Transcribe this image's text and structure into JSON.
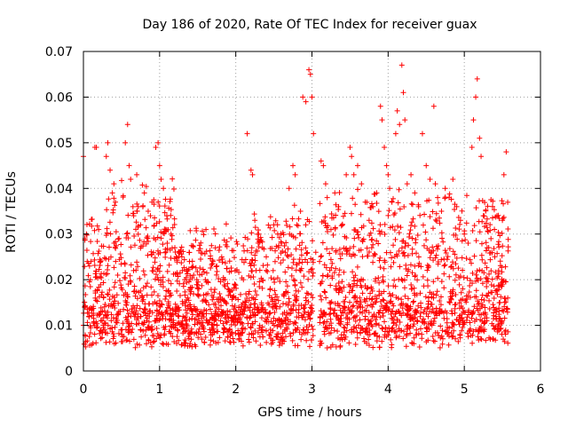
{
  "chart_data": {
    "type": "scatter",
    "title": "Day 186 of 2020, Rate Of TEC Index for receiver guax",
    "xlabel": "GPS time / hours",
    "ylabel": "ROTI / TECUs",
    "xlim": [
      0,
      6
    ],
    "ylim": [
      0,
      0.07
    ],
    "xticks": [
      0,
      1,
      2,
      3,
      4,
      5,
      6
    ],
    "xtick_labels": [
      "0",
      "1",
      "2",
      "3",
      "4",
      "5",
      "6"
    ],
    "yticks": [
      0,
      0.01,
      0.02,
      0.03,
      0.04,
      0.05,
      0.06,
      0.07
    ],
    "ytick_labels": [
      "0",
      "0.01",
      "0.02",
      "0.03",
      "0.04",
      "0.05",
      "0.06",
      "0.07"
    ],
    "grid": true,
    "marker": "+",
    "color": "#ff0000",
    "series": [
      {
        "name": "ROTI",
        "description": "Dense point cloud from 0 to ~5.58 h; baseline ~0.005-0.02 TECU/s with bursts near 0.3-1.2 h, 2.2-3.0 h, 3.5-5.5 h",
        "points": [
          [
            0.0,
            0.047
          ],
          [
            0.02,
            0.029
          ],
          [
            0.04,
            0.03
          ],
          [
            0.05,
            0.024
          ],
          [
            0.08,
            0.023
          ],
          [
            0.1,
            0.024
          ],
          [
            0.15,
            0.049
          ],
          [
            0.17,
            0.049
          ],
          [
            0.2,
            0.031
          ],
          [
            0.22,
            0.024
          ],
          [
            0.3,
            0.047
          ],
          [
            0.32,
            0.05
          ],
          [
            0.35,
            0.044
          ],
          [
            0.38,
            0.039
          ],
          [
            0.4,
            0.041
          ],
          [
            0.42,
            0.037
          ],
          [
            0.45,
            0.021
          ],
          [
            0.55,
            0.05
          ],
          [
            0.58,
            0.054
          ],
          [
            0.6,
            0.045
          ],
          [
            0.62,
            0.042
          ],
          [
            0.65,
            0.036
          ],
          [
            0.7,
            0.043
          ],
          [
            0.72,
            0.036
          ],
          [
            0.75,
            0.032
          ],
          [
            0.78,
            0.036
          ],
          [
            0.8,
            0.039
          ],
          [
            0.85,
            0.035
          ],
          [
            0.88,
            0.034
          ],
          [
            0.9,
            0.037
          ],
          [
            0.95,
            0.049
          ],
          [
            0.98,
            0.05
          ],
          [
            1.0,
            0.045
          ],
          [
            1.02,
            0.042
          ],
          [
            1.05,
            0.04
          ],
          [
            1.08,
            0.031
          ],
          [
            1.1,
            0.028
          ],
          [
            1.15,
            0.03
          ],
          [
            1.2,
            0.027
          ],
          [
            1.25,
            0.025
          ],
          [
            1.3,
            0.022
          ],
          [
            1.4,
            0.02
          ],
          [
            1.5,
            0.018
          ],
          [
            1.6,
            0.02
          ],
          [
            1.7,
            0.024
          ],
          [
            1.75,
            0.023
          ],
          [
            1.9,
            0.018
          ],
          [
            2.0,
            0.016
          ],
          [
            2.1,
            0.02
          ],
          [
            2.15,
            0.052
          ],
          [
            2.2,
            0.044
          ],
          [
            2.22,
            0.043
          ],
          [
            2.25,
            0.033
          ],
          [
            2.3,
            0.03
          ],
          [
            2.35,
            0.027
          ],
          [
            2.4,
            0.025
          ],
          [
            2.5,
            0.032
          ],
          [
            2.55,
            0.03
          ],
          [
            2.6,
            0.028
          ],
          [
            2.65,
            0.026
          ],
          [
            2.7,
            0.04
          ],
          [
            2.75,
            0.045
          ],
          [
            2.78,
            0.043
          ],
          [
            2.8,
            0.032
          ],
          [
            2.85,
            0.035
          ],
          [
            2.88,
            0.06
          ],
          [
            2.92,
            0.059
          ],
          [
            2.96,
            0.066
          ],
          [
            2.98,
            0.065
          ],
          [
            3.0,
            0.06
          ],
          [
            3.02,
            0.052
          ],
          [
            3.05,
            0.026
          ],
          [
            3.1,
            0.024
          ],
          [
            3.12,
            0.046
          ],
          [
            3.15,
            0.045
          ],
          [
            3.18,
            0.041
          ],
          [
            3.2,
            0.038
          ],
          [
            3.25,
            0.031
          ],
          [
            3.3,
            0.039
          ],
          [
            3.35,
            0.036
          ],
          [
            3.4,
            0.032
          ],
          [
            3.45,
            0.043
          ],
          [
            3.5,
            0.049
          ],
          [
            3.52,
            0.047
          ],
          [
            3.55,
            0.043
          ],
          [
            3.6,
            0.045
          ],
          [
            3.65,
            0.041
          ],
          [
            3.7,
            0.037
          ],
          [
            3.75,
            0.033
          ],
          [
            3.8,
            0.036
          ],
          [
            3.85,
            0.039
          ],
          [
            3.9,
            0.058
          ],
          [
            3.92,
            0.055
          ],
          [
            3.95,
            0.049
          ],
          [
            3.98,
            0.045
          ],
          [
            4.0,
            0.043
          ],
          [
            4.02,
            0.04
          ],
          [
            4.05,
            0.037
          ],
          [
            4.1,
            0.052
          ],
          [
            4.12,
            0.057
          ],
          [
            4.15,
            0.054
          ],
          [
            4.18,
            0.067
          ],
          [
            4.2,
            0.061
          ],
          [
            4.22,
            0.055
          ],
          [
            4.25,
            0.041
          ],
          [
            4.3,
            0.043
          ],
          [
            4.35,
            0.039
          ],
          [
            4.4,
            0.036
          ],
          [
            4.45,
            0.052
          ],
          [
            4.5,
            0.045
          ],
          [
            4.55,
            0.042
          ],
          [
            4.6,
            0.058
          ],
          [
            4.62,
            0.041
          ],
          [
            4.65,
            0.038
          ],
          [
            4.7,
            0.035
          ],
          [
            4.75,
            0.04
          ],
          [
            4.8,
            0.038
          ],
          [
            4.85,
            0.042
          ],
          [
            4.9,
            0.036
          ],
          [
            4.95,
            0.033
          ],
          [
            5.0,
            0.03
          ],
          [
            5.05,
            0.028
          ],
          [
            5.1,
            0.049
          ],
          [
            5.12,
            0.055
          ],
          [
            5.15,
            0.06
          ],
          [
            5.17,
            0.064
          ],
          [
            5.2,
            0.051
          ],
          [
            5.22,
            0.047
          ],
          [
            5.25,
            0.034
          ],
          [
            5.3,
            0.027
          ],
          [
            5.35,
            0.029
          ],
          [
            5.4,
            0.025
          ],
          [
            5.45,
            0.022
          ],
          [
            5.5,
            0.033
          ],
          [
            5.52,
            0.043
          ],
          [
            5.55,
            0.048
          ],
          [
            5.57,
            0.016
          ]
        ]
      }
    ]
  }
}
